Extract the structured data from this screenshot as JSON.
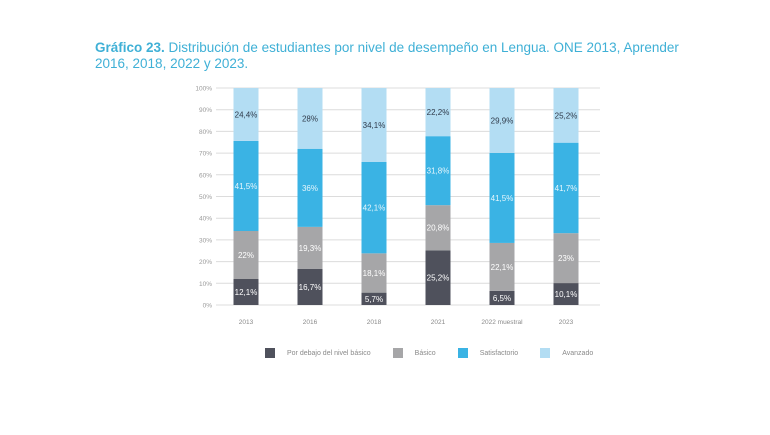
{
  "title": {
    "prefix": "Gráfico 23.",
    "text": " Distribución de estudiantes por nivel de desempeño en Lengua. ONE 2013, Aprender 2016, 2018, 2022 y 2023."
  },
  "chart_data": {
    "type": "bar",
    "stacked": true,
    "title": "Gráfico 23. Distribución de estudiantes por nivel de desempeño en Lengua. ONE 2013, Aprender 2016, 2018, 2022 y 2023.",
    "xlabel": "",
    "ylabel": "",
    "ylim": [
      0,
      100
    ],
    "yticks": [
      "0%",
      "10%",
      "20%",
      "30%",
      "40%",
      "50%",
      "60%",
      "70%",
      "80%",
      "90%",
      "100%"
    ],
    "grid": true,
    "legend_position": "bottom",
    "categories": [
      "2013",
      "2016",
      "2018",
      "2021",
      "2022 muestral",
      "2023"
    ],
    "series": [
      {
        "name": "Por debajo del nivel básico",
        "color": "#4f515c",
        "label_color": "#ffffff",
        "values": [
          12.1,
          16.7,
          5.7,
          25.2,
          6.5,
          10.1
        ],
        "labels": [
          "12,1%",
          "16,7%",
          "5,7%",
          "25,2%",
          "6,5%",
          "10,1%"
        ]
      },
      {
        "name": "Básico",
        "color": "#a6a6a8",
        "label_color": "#ffffff",
        "values": [
          22,
          19.3,
          18.1,
          20.8,
          22.1,
          23
        ],
        "labels": [
          "22%",
          "19,3%",
          "18,1%",
          "20,8%",
          "22,1%",
          "23%"
        ]
      },
      {
        "name": "Satisfactorio",
        "color": "#3ab3e4",
        "label_color": "#e6f6fc",
        "values": [
          41.5,
          36,
          42.1,
          31.8,
          41.5,
          41.7
        ],
        "labels": [
          "41,5%",
          "36%",
          "42,1%",
          "31,8%",
          "41,5%",
          "41,7%"
        ]
      },
      {
        "name": "Avanzado",
        "color": "#b3ddf3",
        "label_color": "#2f3a4a",
        "values": [
          24.4,
          28,
          34.1,
          22.2,
          29.9,
          25.2
        ],
        "labels": [
          "24,4%",
          "28%",
          "34,1%",
          "22,2%",
          "29,9%",
          "25,2%"
        ]
      }
    ]
  },
  "legend": [
    {
      "label": "Por debajo del nivel básico",
      "color": "#4f515c"
    },
    {
      "label": "Básico",
      "color": "#a6a6a8"
    },
    {
      "label": "Satisfactorio",
      "color": "#3ab3e4"
    },
    {
      "label": "Avanzado",
      "color": "#b3ddf3"
    }
  ]
}
